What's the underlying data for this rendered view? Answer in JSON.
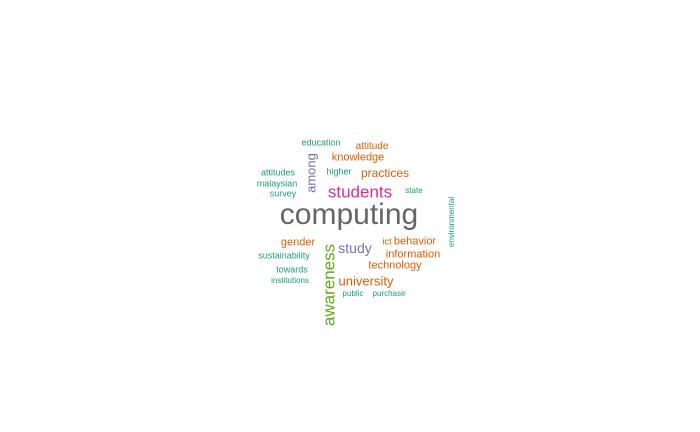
{
  "colors": {
    "teal": "#1b9e77",
    "orange": "#d95f02",
    "purple": "#7570b3",
    "magenta": "#e7298a",
    "green": "#66a61e",
    "gray": "#666666"
  },
  "words": [
    {
      "text": "computing",
      "color": "gray"
    },
    {
      "text": "students",
      "color": "magenta"
    },
    {
      "text": "awareness",
      "color": "green",
      "rotated": true
    },
    {
      "text": "among",
      "color": "purple",
      "rotated": true
    },
    {
      "text": "study",
      "color": "purple"
    },
    {
      "text": "university",
      "color": "orange"
    },
    {
      "text": "practices",
      "color": "orange"
    },
    {
      "text": "knowledge",
      "color": "orange"
    },
    {
      "text": "attitude",
      "color": "orange"
    },
    {
      "text": "behavior",
      "color": "orange"
    },
    {
      "text": "information",
      "color": "orange"
    },
    {
      "text": "technology",
      "color": "orange"
    },
    {
      "text": "gender",
      "color": "orange"
    },
    {
      "text": "ict",
      "color": "orange"
    },
    {
      "text": "education",
      "color": "teal"
    },
    {
      "text": "higher",
      "color": "teal"
    },
    {
      "text": "attitudes",
      "color": "teal"
    },
    {
      "text": "malaysian",
      "color": "teal"
    },
    {
      "text": "survey",
      "color": "teal"
    },
    {
      "text": "state",
      "color": "teal"
    },
    {
      "text": "environmental",
      "color": "teal",
      "rotated": true
    },
    {
      "text": "sustainability",
      "color": "teal"
    },
    {
      "text": "towards",
      "color": "teal"
    },
    {
      "text": "institutions",
      "color": "teal"
    },
    {
      "text": "public",
      "color": "teal"
    },
    {
      "text": "purchase",
      "color": "teal"
    }
  ]
}
